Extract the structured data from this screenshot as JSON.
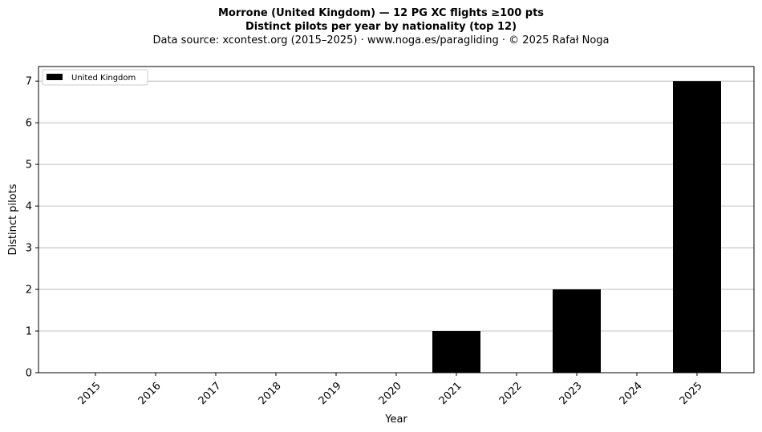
{
  "chart_data": {
    "type": "bar",
    "title": "Morrone (United Kingdom)  —  12 PG XC flights ≥100 pts",
    "title_line2": "Distinct pilots per year by nationality (top 12)",
    "subtitle": "Data source: xcontest.org (2015–2025)  ·  www.noga.es/paragliding  ·  © 2025 Rafał Noga",
    "xlabel": "Year",
    "ylabel": "Distinct pilots",
    "categories": [
      "2015",
      "2016",
      "2017",
      "2018",
      "2019",
      "2020",
      "2021",
      "2022",
      "2023",
      "2024",
      "2025"
    ],
    "series": [
      {
        "name": "United Kingdom",
        "color": "#000000",
        "values": [
          0,
          0,
          0,
          0,
          0,
          0,
          1,
          0,
          2,
          0,
          7
        ]
      }
    ],
    "ylim": [
      0,
      7.35
    ],
    "yticks": [
      0,
      1,
      2,
      3,
      4,
      5,
      6,
      7
    ],
    "grid": "y",
    "legend_position": "top-left"
  }
}
